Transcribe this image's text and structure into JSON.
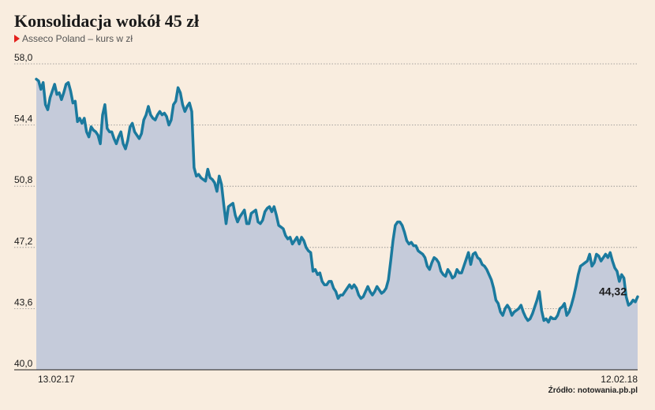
{
  "header": {
    "title": "Konsolidacja wokół 45 zł",
    "subtitle": "Asseco Poland – kurs w zł"
  },
  "source": "Źródło: notowania.pb.pl",
  "colors": {
    "background": "#f9eddf",
    "line": "#1b7a9e",
    "area": "#c5cbda",
    "marker": "#e3201b"
  },
  "chart_data": {
    "type": "area",
    "title": "Konsolidacja wokół 45 zł",
    "subtitle": "Asseco Poland – kurs w zł",
    "xlabel": "",
    "ylabel": "",
    "ylim": [
      40.0,
      58.0
    ],
    "yticks": [
      "58,0",
      "54,4",
      "50,8",
      "47,2",
      "43,6",
      "40,0"
    ],
    "ytick_values": [
      58.0,
      54.4,
      50.8,
      47.2,
      43.6,
      40.0
    ],
    "grid": true,
    "xtick_labels": [
      "13.02.17",
      "12.02.18"
    ],
    "last_value_label": "44,32",
    "series": [
      {
        "values": [
          57.1,
          57.0,
          56.5,
          56.9,
          55.6,
          55.3,
          56.0,
          56.4,
          56.8,
          56.2,
          56.3,
          55.9,
          56.3,
          56.8,
          56.9,
          56.4,
          55.7,
          55.8,
          54.6,
          54.8,
          54.5,
          54.8,
          54.0,
          53.7,
          54.3,
          54.1,
          54.0,
          53.8,
          53.3,
          55.0,
          55.6,
          54.2,
          54.0,
          54.0,
          53.6,
          53.3,
          53.7,
          54.0,
          53.3,
          53.0,
          53.5,
          54.3,
          54.5,
          54.0,
          53.8,
          53.6,
          53.9,
          54.7,
          55.0,
          55.5,
          55.0,
          54.8,
          54.7,
          55.0,
          55.2,
          55.0,
          55.1,
          54.9,
          54.4,
          54.7,
          55.6,
          55.8,
          56.6,
          56.3,
          55.6,
          55.2,
          55.5,
          55.7,
          55.2,
          51.9,
          51.4,
          51.5,
          51.3,
          51.2,
          51.1,
          51.8,
          51.3,
          51.2,
          51.0,
          50.5,
          51.4,
          50.9,
          49.7,
          48.6,
          49.6,
          49.7,
          49.8,
          49.1,
          48.7,
          49.0,
          49.2,
          49.4,
          48.6,
          48.6,
          49.2,
          49.3,
          49.4,
          48.7,
          48.6,
          48.8,
          49.3,
          49.5,
          49.6,
          49.3,
          49.6,
          49.1,
          48.5,
          48.4,
          48.3,
          47.9,
          47.7,
          47.8,
          47.4,
          47.6,
          47.8,
          47.4,
          47.8,
          47.6,
          47.2,
          47.0,
          46.9,
          45.8,
          45.9,
          45.6,
          45.7,
          45.2,
          45.0,
          45.0,
          45.2,
          45.2,
          44.8,
          44.6,
          44.2,
          44.4,
          44.4,
          44.6,
          44.8,
          45.0,
          44.8,
          45.0,
          44.8,
          44.4,
          44.2,
          44.3,
          44.6,
          44.9,
          44.6,
          44.4,
          44.6,
          44.9,
          44.7,
          44.5,
          44.6,
          44.8,
          45.3,
          46.4,
          47.6,
          48.5,
          48.7,
          48.7,
          48.5,
          48.1,
          47.6,
          47.4,
          47.5,
          47.3,
          47.3,
          47.0,
          46.9,
          46.8,
          46.6,
          46.1,
          45.9,
          46.3,
          46.6,
          46.5,
          46.3,
          45.8,
          45.6,
          45.5,
          45.9,
          45.7,
          45.4,
          45.5,
          45.9,
          45.7,
          45.7,
          46.1,
          46.5,
          46.9,
          46.2,
          46.8,
          46.9,
          46.6,
          46.5,
          46.2,
          46.1,
          45.9,
          45.6,
          45.3,
          44.8,
          44.1,
          43.9,
          43.4,
          43.2,
          43.6,
          43.8,
          43.6,
          43.2,
          43.4,
          43.5,
          43.6,
          43.8,
          43.4,
          43.1,
          42.9,
          43.0,
          43.3,
          43.7,
          44.1,
          44.6,
          43.5,
          42.9,
          43.0,
          42.8,
          43.1,
          43.0,
          43.0,
          43.2,
          43.6,
          43.7,
          43.9,
          43.2,
          43.4,
          43.8,
          44.3,
          44.9,
          45.6,
          46.1,
          46.2,
          46.3,
          46.4,
          46.8,
          46.1,
          46.3,
          46.8,
          46.7,
          46.4,
          46.6,
          46.8,
          46.6,
          46.9,
          46.4,
          46.0,
          45.8,
          45.2,
          45.6,
          45.4,
          44.3,
          43.8,
          43.9,
          44.1,
          44.0,
          44.3
        ]
      }
    ]
  }
}
